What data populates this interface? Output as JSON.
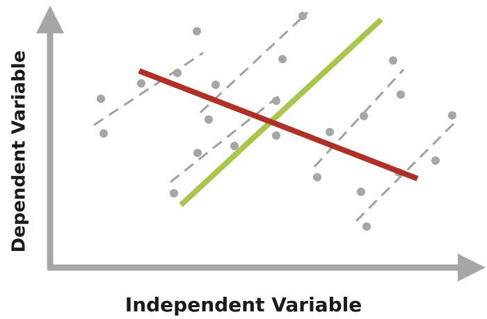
{
  "x_axis": {
    "label": "Independent Variable"
  },
  "y_axis": {
    "label": "Dependent Variable"
  }
}
